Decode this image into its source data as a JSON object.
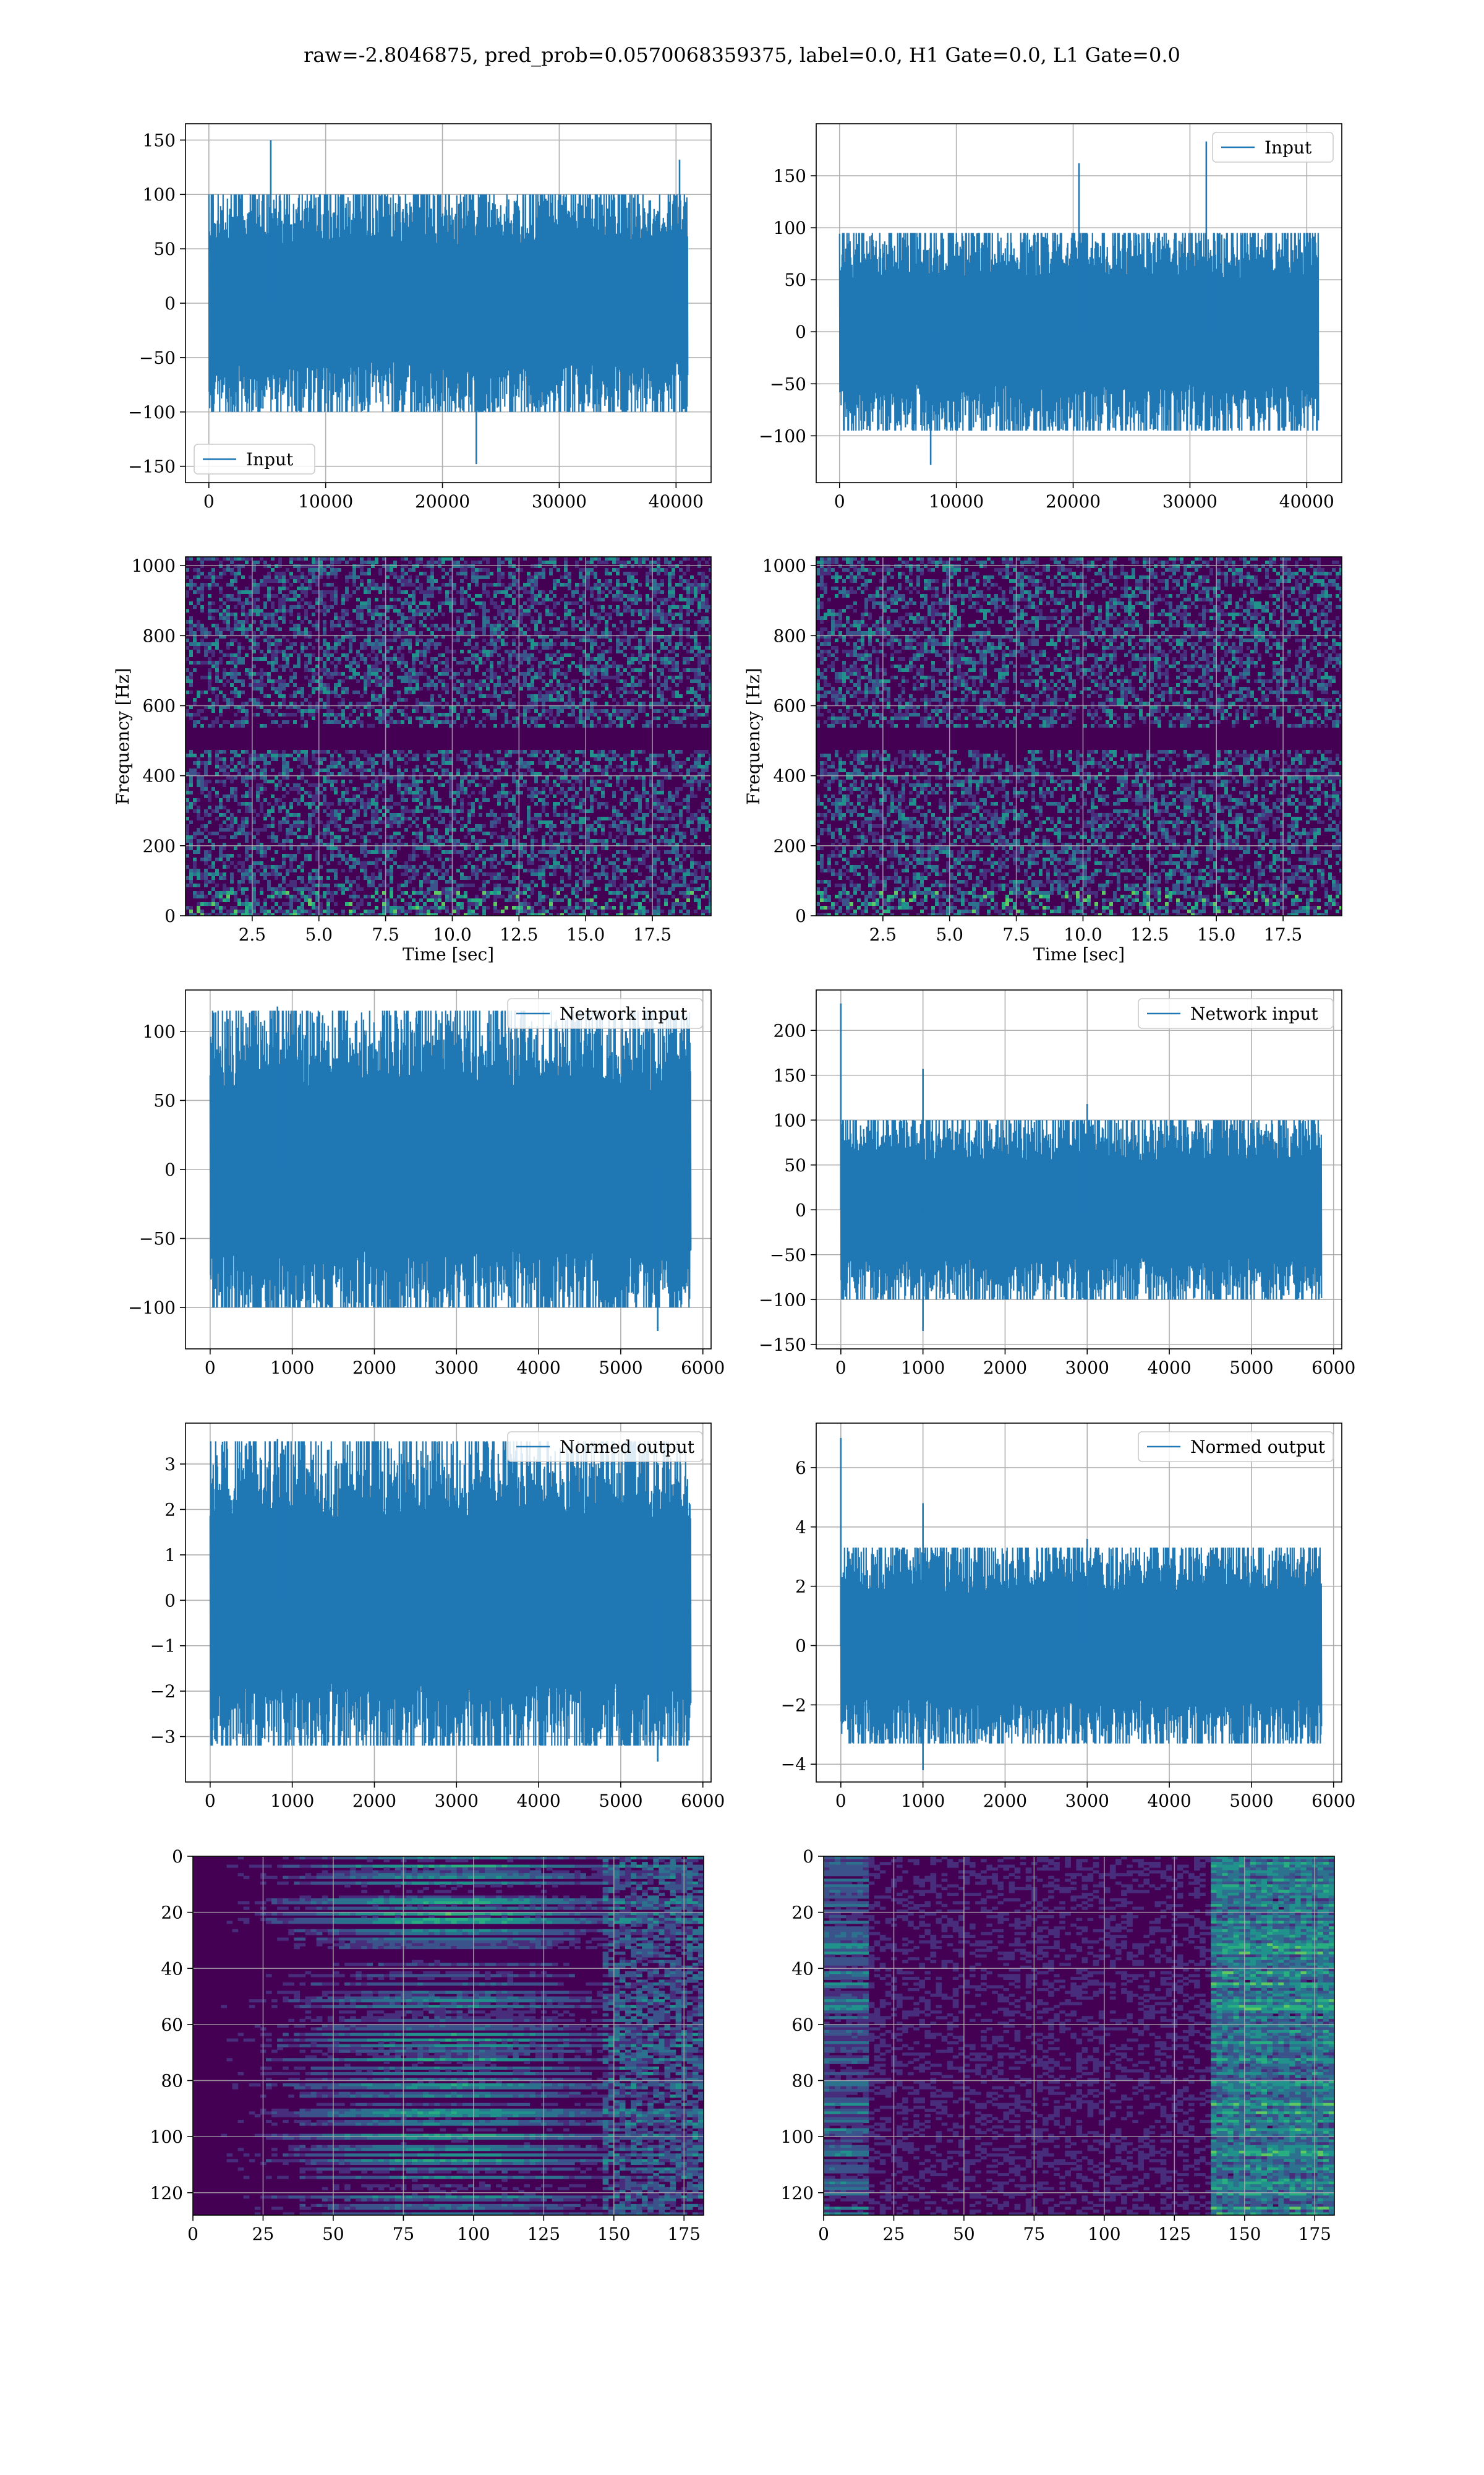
{
  "suptitle": "raw=-2.8046875, pred_prob=0.0570068359375, label=0.0, H1 Gate=0.0, L1 Gate=0.0",
  "colors": {
    "line": "#1f77b4",
    "grid": "#b0b0b0",
    "viridis_dark": "#440154"
  },
  "chart_data": [
    {
      "id": "input-h1",
      "type": "line",
      "legend": "Input",
      "legend_loc": "lower left",
      "xlim": [
        -2000,
        43000
      ],
      "ylim": [
        -165,
        165
      ],
      "xticks": [
        0,
        10000,
        20000,
        30000,
        40000
      ],
      "xticklabels": [
        "0",
        "10000",
        "20000",
        "30000",
        "40000"
      ],
      "yticks": [
        -150,
        -100,
        -50,
        0,
        50,
        100,
        150
      ],
      "yticklabels": [
        "−150",
        "−100",
        "−50",
        "0",
        "50",
        "100",
        "150"
      ],
      "xlabel": "",
      "ylabel": "",
      "series": [
        {
          "name": "Input",
          "x_range": [
            0,
            41000
          ],
          "envelope": [
            -100,
            100
          ],
          "spikes": [
            [
              5300,
              150
            ],
            [
              22900,
              -148
            ],
            [
              40300,
              132
            ]
          ]
        }
      ]
    },
    {
      "id": "input-l1",
      "type": "line",
      "legend": "Input",
      "legend_loc": "upper right",
      "xlim": [
        -2000,
        43000
      ],
      "ylim": [
        -145,
        200
      ],
      "xticks": [
        0,
        10000,
        20000,
        30000,
        40000
      ],
      "xticklabels": [
        "0",
        "10000",
        "20000",
        "30000",
        "40000"
      ],
      "yticks": [
        -100,
        -50,
        0,
        50,
        100,
        150
      ],
      "yticklabels": [
        "−100",
        "−50",
        "0",
        "50",
        "100",
        "150"
      ],
      "xlabel": "",
      "ylabel": "",
      "series": [
        {
          "name": "Input",
          "x_range": [
            0,
            41000
          ],
          "envelope": [
            -95,
            95
          ],
          "spikes": [
            [
              20500,
              162
            ],
            [
              31400,
              183
            ],
            [
              7800,
              -128
            ]
          ]
        }
      ]
    },
    {
      "id": "spec-h1",
      "type": "heatmap",
      "xlim": [
        0,
        19.7
      ],
      "ylim": [
        0,
        1025
      ],
      "xticks": [
        2.5,
        5.0,
        7.5,
        10.0,
        12.5,
        15.0,
        17.5
      ],
      "xticklabels": [
        "2.5",
        "5.0",
        "7.5",
        "10.0",
        "12.5",
        "15.0",
        "17.5"
      ],
      "yticks": [
        0,
        200,
        400,
        600,
        800,
        1000
      ],
      "yticklabels": [
        "0",
        "200",
        "400",
        "600",
        "800",
        "1000"
      ],
      "xlabel": "Time [sec]",
      "ylabel": "Frequency [Hz]"
    },
    {
      "id": "spec-l1",
      "type": "heatmap",
      "xlim": [
        0,
        19.7
      ],
      "ylim": [
        0,
        1025
      ],
      "xticks": [
        2.5,
        5.0,
        7.5,
        10.0,
        12.5,
        15.0,
        17.5
      ],
      "xticklabels": [
        "2.5",
        "5.0",
        "7.5",
        "10.0",
        "12.5",
        "15.0",
        "17.5"
      ],
      "yticks": [
        0,
        200,
        400,
        600,
        800,
        1000
      ],
      "yticklabels": [
        "0",
        "200",
        "400",
        "600",
        "800",
        "1000"
      ],
      "xlabel": "Time [sec]",
      "ylabel": "Frequency [Hz]"
    },
    {
      "id": "net-h1",
      "type": "line",
      "legend": "Network input",
      "legend_loc": "upper right",
      "xlim": [
        -300,
        6100
      ],
      "ylim": [
        -130,
        130
      ],
      "xticks": [
        0,
        1000,
        2000,
        3000,
        4000,
        5000,
        6000
      ],
      "xticklabels": [
        "0",
        "1000",
        "2000",
        "3000",
        "4000",
        "5000",
        "6000"
      ],
      "yticks": [
        -100,
        -50,
        0,
        50,
        100
      ],
      "yticklabels": [
        "−100",
        "−50",
        "0",
        "50",
        "100"
      ],
      "xlabel": "",
      "ylabel": "",
      "series": [
        {
          "name": "Network input",
          "x_range": [
            0,
            5850
          ],
          "envelope": [
            -100,
            115
          ],
          "spikes": [
            [
              820,
              118
            ],
            [
              5450,
              -117
            ]
          ]
        }
      ]
    },
    {
      "id": "net-l1",
      "type": "line",
      "legend": "Network input",
      "legend_loc": "upper right",
      "xlim": [
        -300,
        6100
      ],
      "ylim": [
        -155,
        245
      ],
      "xticks": [
        0,
        1000,
        2000,
        3000,
        4000,
        5000,
        6000
      ],
      "xticklabels": [
        "0",
        "1000",
        "2000",
        "3000",
        "4000",
        "5000",
        "6000"
      ],
      "yticks": [
        -150,
        -100,
        -50,
        0,
        50,
        100,
        150,
        200
      ],
      "yticklabels": [
        "−150",
        "−100",
        "−50",
        "0",
        "50",
        "100",
        "150",
        "200"
      ],
      "xlabel": "",
      "ylabel": "",
      "series": [
        {
          "name": "Network input",
          "x_range": [
            0,
            5850
          ],
          "envelope": [
            -100,
            100
          ],
          "spikes": [
            [
              0,
              230
            ],
            [
              1000,
              157
            ],
            [
              1000,
              -135
            ],
            [
              3000,
              118
            ]
          ]
        }
      ]
    },
    {
      "id": "norm-h1",
      "type": "line",
      "legend": "Normed output",
      "legend_loc": "upper right",
      "xlim": [
        -300,
        6100
      ],
      "ylim": [
        -4.0,
        3.9
      ],
      "xticks": [
        0,
        1000,
        2000,
        3000,
        4000,
        5000,
        6000
      ],
      "xticklabels": [
        "0",
        "1000",
        "2000",
        "3000",
        "4000",
        "5000",
        "6000"
      ],
      "yticks": [
        -3,
        -2,
        -1,
        0,
        1,
        2,
        3
      ],
      "yticklabels": [
        "−3",
        "−2",
        "−1",
        "0",
        "1",
        "2",
        "3"
      ],
      "xlabel": "",
      "ylabel": "",
      "series": [
        {
          "name": "Normed output",
          "x_range": [
            0,
            5850
          ],
          "envelope": [
            -3.2,
            3.5
          ],
          "spikes": [
            [
              820,
              3.55
            ],
            [
              5450,
              -3.55
            ]
          ]
        }
      ]
    },
    {
      "id": "norm-l1",
      "type": "line",
      "legend": "Normed output",
      "legend_loc": "upper right",
      "xlim": [
        -300,
        6100
      ],
      "ylim": [
        -4.6,
        7.5
      ],
      "xticks": [
        0,
        1000,
        2000,
        3000,
        4000,
        5000,
        6000
      ],
      "xticklabels": [
        "0",
        "1000",
        "2000",
        "3000",
        "4000",
        "5000",
        "6000"
      ],
      "yticks": [
        -4,
        -2,
        0,
        2,
        4,
        6
      ],
      "yticklabels": [
        "−4",
        "−2",
        "0",
        "2",
        "4",
        "6"
      ],
      "xlabel": "",
      "ylabel": "",
      "series": [
        {
          "name": "Normed output",
          "x_range": [
            0,
            5850
          ],
          "envelope": [
            -3.3,
            3.3
          ],
          "spikes": [
            [
              0,
              7.0
            ],
            [
              1000,
              4.8
            ],
            [
              1000,
              -4.2
            ],
            [
              3000,
              3.6
            ]
          ]
        }
      ]
    },
    {
      "id": "feat-h1",
      "type": "heatmap",
      "xlim": [
        0,
        182
      ],
      "ylim": [
        128,
        0
      ],
      "xticks": [
        0,
        25,
        50,
        75,
        100,
        125,
        150,
        175
      ],
      "xticklabels": [
        "0",
        "25",
        "50",
        "75",
        "100",
        "125",
        "150",
        "175"
      ],
      "yticks": [
        0,
        20,
        40,
        60,
        80,
        100,
        120
      ],
      "yticklabels": [
        "0",
        "20",
        "40",
        "60",
        "80",
        "100",
        "120"
      ],
      "xlabel": "",
      "ylabel": ""
    },
    {
      "id": "feat-l1",
      "type": "heatmap",
      "xlim": [
        0,
        182
      ],
      "ylim": [
        128,
        0
      ],
      "xticks": [
        0,
        25,
        50,
        75,
        100,
        125,
        150,
        175
      ],
      "xticklabels": [
        "0",
        "25",
        "50",
        "75",
        "100",
        "125",
        "150",
        "175"
      ],
      "yticks": [
        0,
        20,
        40,
        60,
        80,
        100,
        120
      ],
      "yticklabels": [
        "0",
        "20",
        "40",
        "60",
        "80",
        "100",
        "120"
      ],
      "xlabel": "",
      "ylabel": ""
    }
  ]
}
